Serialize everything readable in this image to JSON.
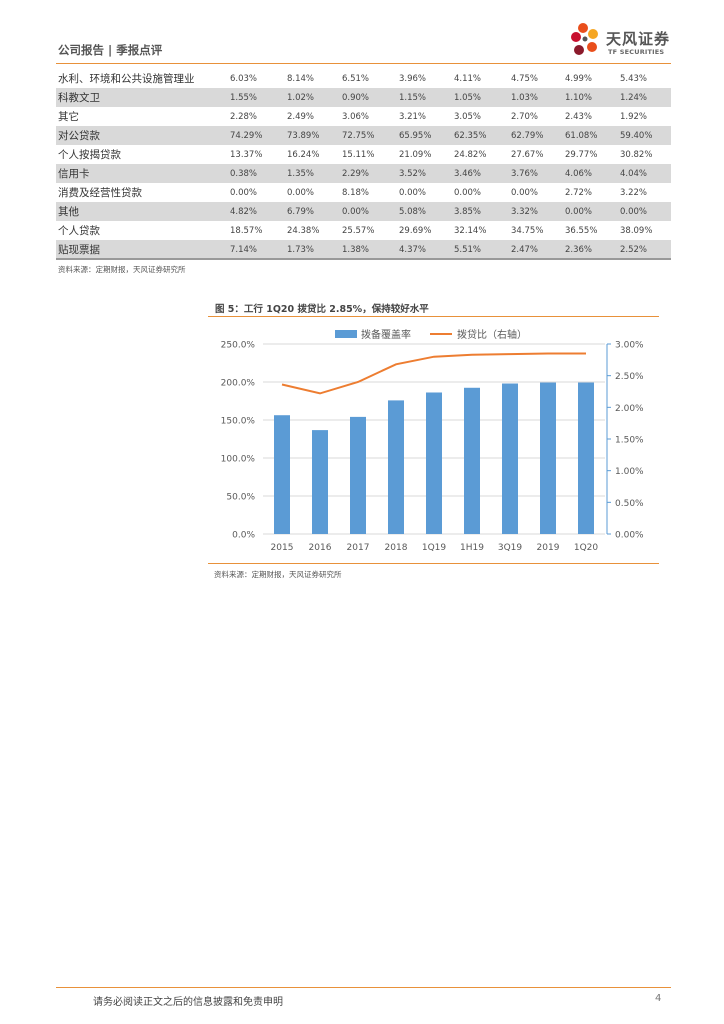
{
  "header": {
    "title": "公司报告 | 季报点评",
    "logo_cn": "天风证券",
    "logo_en": "TF SECURITIES",
    "logo_colors": [
      "#e94e1b",
      "#f5a623",
      "#c8102e",
      "#8b1a2b",
      "#555555"
    ]
  },
  "table": {
    "rows": [
      {
        "name": "水利、环境和公共设施管理业",
        "shaded": false,
        "values": [
          "6.03%",
          "8.14%",
          "6.51%",
          "3.96%",
          "4.11%",
          "4.75%",
          "4.99%",
          "5.43%"
        ]
      },
      {
        "name": "科教文卫",
        "shaded": true,
        "values": [
          "1.55%",
          "1.02%",
          "0.90%",
          "1.15%",
          "1.05%",
          "1.03%",
          "1.10%",
          "1.24%"
        ]
      },
      {
        "name": "其它",
        "shaded": false,
        "values": [
          "2.28%",
          "2.49%",
          "3.06%",
          "3.21%",
          "3.05%",
          "2.70%",
          "2.43%",
          "1.92%"
        ]
      },
      {
        "name": "对公贷款",
        "shaded": true,
        "values": [
          "74.29%",
          "73.89%",
          "72.75%",
          "65.95%",
          "62.35%",
          "62.79%",
          "61.08%",
          "59.40%"
        ]
      },
      {
        "name": "个人按揭贷款",
        "shaded": false,
        "values": [
          "13.37%",
          "16.24%",
          "15.11%",
          "21.09%",
          "24.82%",
          "27.67%",
          "29.77%",
          "30.82%"
        ]
      },
      {
        "name": "信用卡",
        "shaded": true,
        "values": [
          "0.38%",
          "1.35%",
          "2.29%",
          "3.52%",
          "3.46%",
          "3.76%",
          "4.06%",
          "4.04%"
        ]
      },
      {
        "name": "消费及经营性贷款",
        "shaded": false,
        "values": [
          "0.00%",
          "0.00%",
          "8.18%",
          "0.00%",
          "0.00%",
          "0.00%",
          "2.72%",
          "3.22%"
        ]
      },
      {
        "name": "其他",
        "shaded": true,
        "values": [
          "4.82%",
          "6.79%",
          "0.00%",
          "5.08%",
          "3.85%",
          "3.32%",
          "0.00%",
          "0.00%"
        ]
      },
      {
        "name": "个人贷款",
        "shaded": false,
        "values": [
          "18.57%",
          "24.38%",
          "25.57%",
          "29.69%",
          "32.14%",
          "34.75%",
          "36.55%",
          "38.09%"
        ]
      },
      {
        "name": "贴现票据",
        "shaded": true,
        "values": [
          "7.14%",
          "1.73%",
          "1.38%",
          "4.37%",
          "5.51%",
          "2.47%",
          "2.36%",
          "2.52%"
        ]
      }
    ],
    "source": "资料来源：定期财报，天风证券研究所"
  },
  "figure": {
    "title": "图 5：工行 1Q20 拨贷比 2.85%，保持较好水平",
    "source": "资料来源：定期财报，天风证券研究所"
  },
  "chart_data": {
    "type": "bar",
    "title": "",
    "categories": [
      "2015",
      "2016",
      "2017",
      "2018",
      "1Q19",
      "1H19",
      "3Q19",
      "2019",
      "1Q20"
    ],
    "series": [
      {
        "name": "拨备覆盖率",
        "type": "bar",
        "axis": "left",
        "color": "#5b9bd5",
        "values": [
          156.3,
          136.7,
          154.1,
          175.8,
          186.2,
          192.4,
          198.0,
          199.3,
          199.3
        ]
      },
      {
        "name": "拨贷比（右轴）",
        "type": "line",
        "axis": "right",
        "color": "#ed7d31",
        "values": [
          2.36,
          2.22,
          2.4,
          2.68,
          2.8,
          2.83,
          2.84,
          2.85,
          2.85
        ]
      }
    ],
    "y_left": {
      "min": 0,
      "max": 250,
      "step": 50,
      "tick_labels": [
        "0.0%",
        "50.0%",
        "100.0%",
        "150.0%",
        "200.0%",
        "250.0%"
      ]
    },
    "y_right": {
      "min": 0,
      "max": 3,
      "step": 0.5,
      "tick_labels": [
        "0.00%",
        "0.50%",
        "1.00%",
        "1.50%",
        "2.00%",
        "2.50%",
        "3.00%"
      ]
    },
    "grid": true,
    "legend_position": "top"
  },
  "footer": {
    "disclaimer": "请务必阅读正文之后的信息披露和免责申明",
    "page": "4"
  }
}
